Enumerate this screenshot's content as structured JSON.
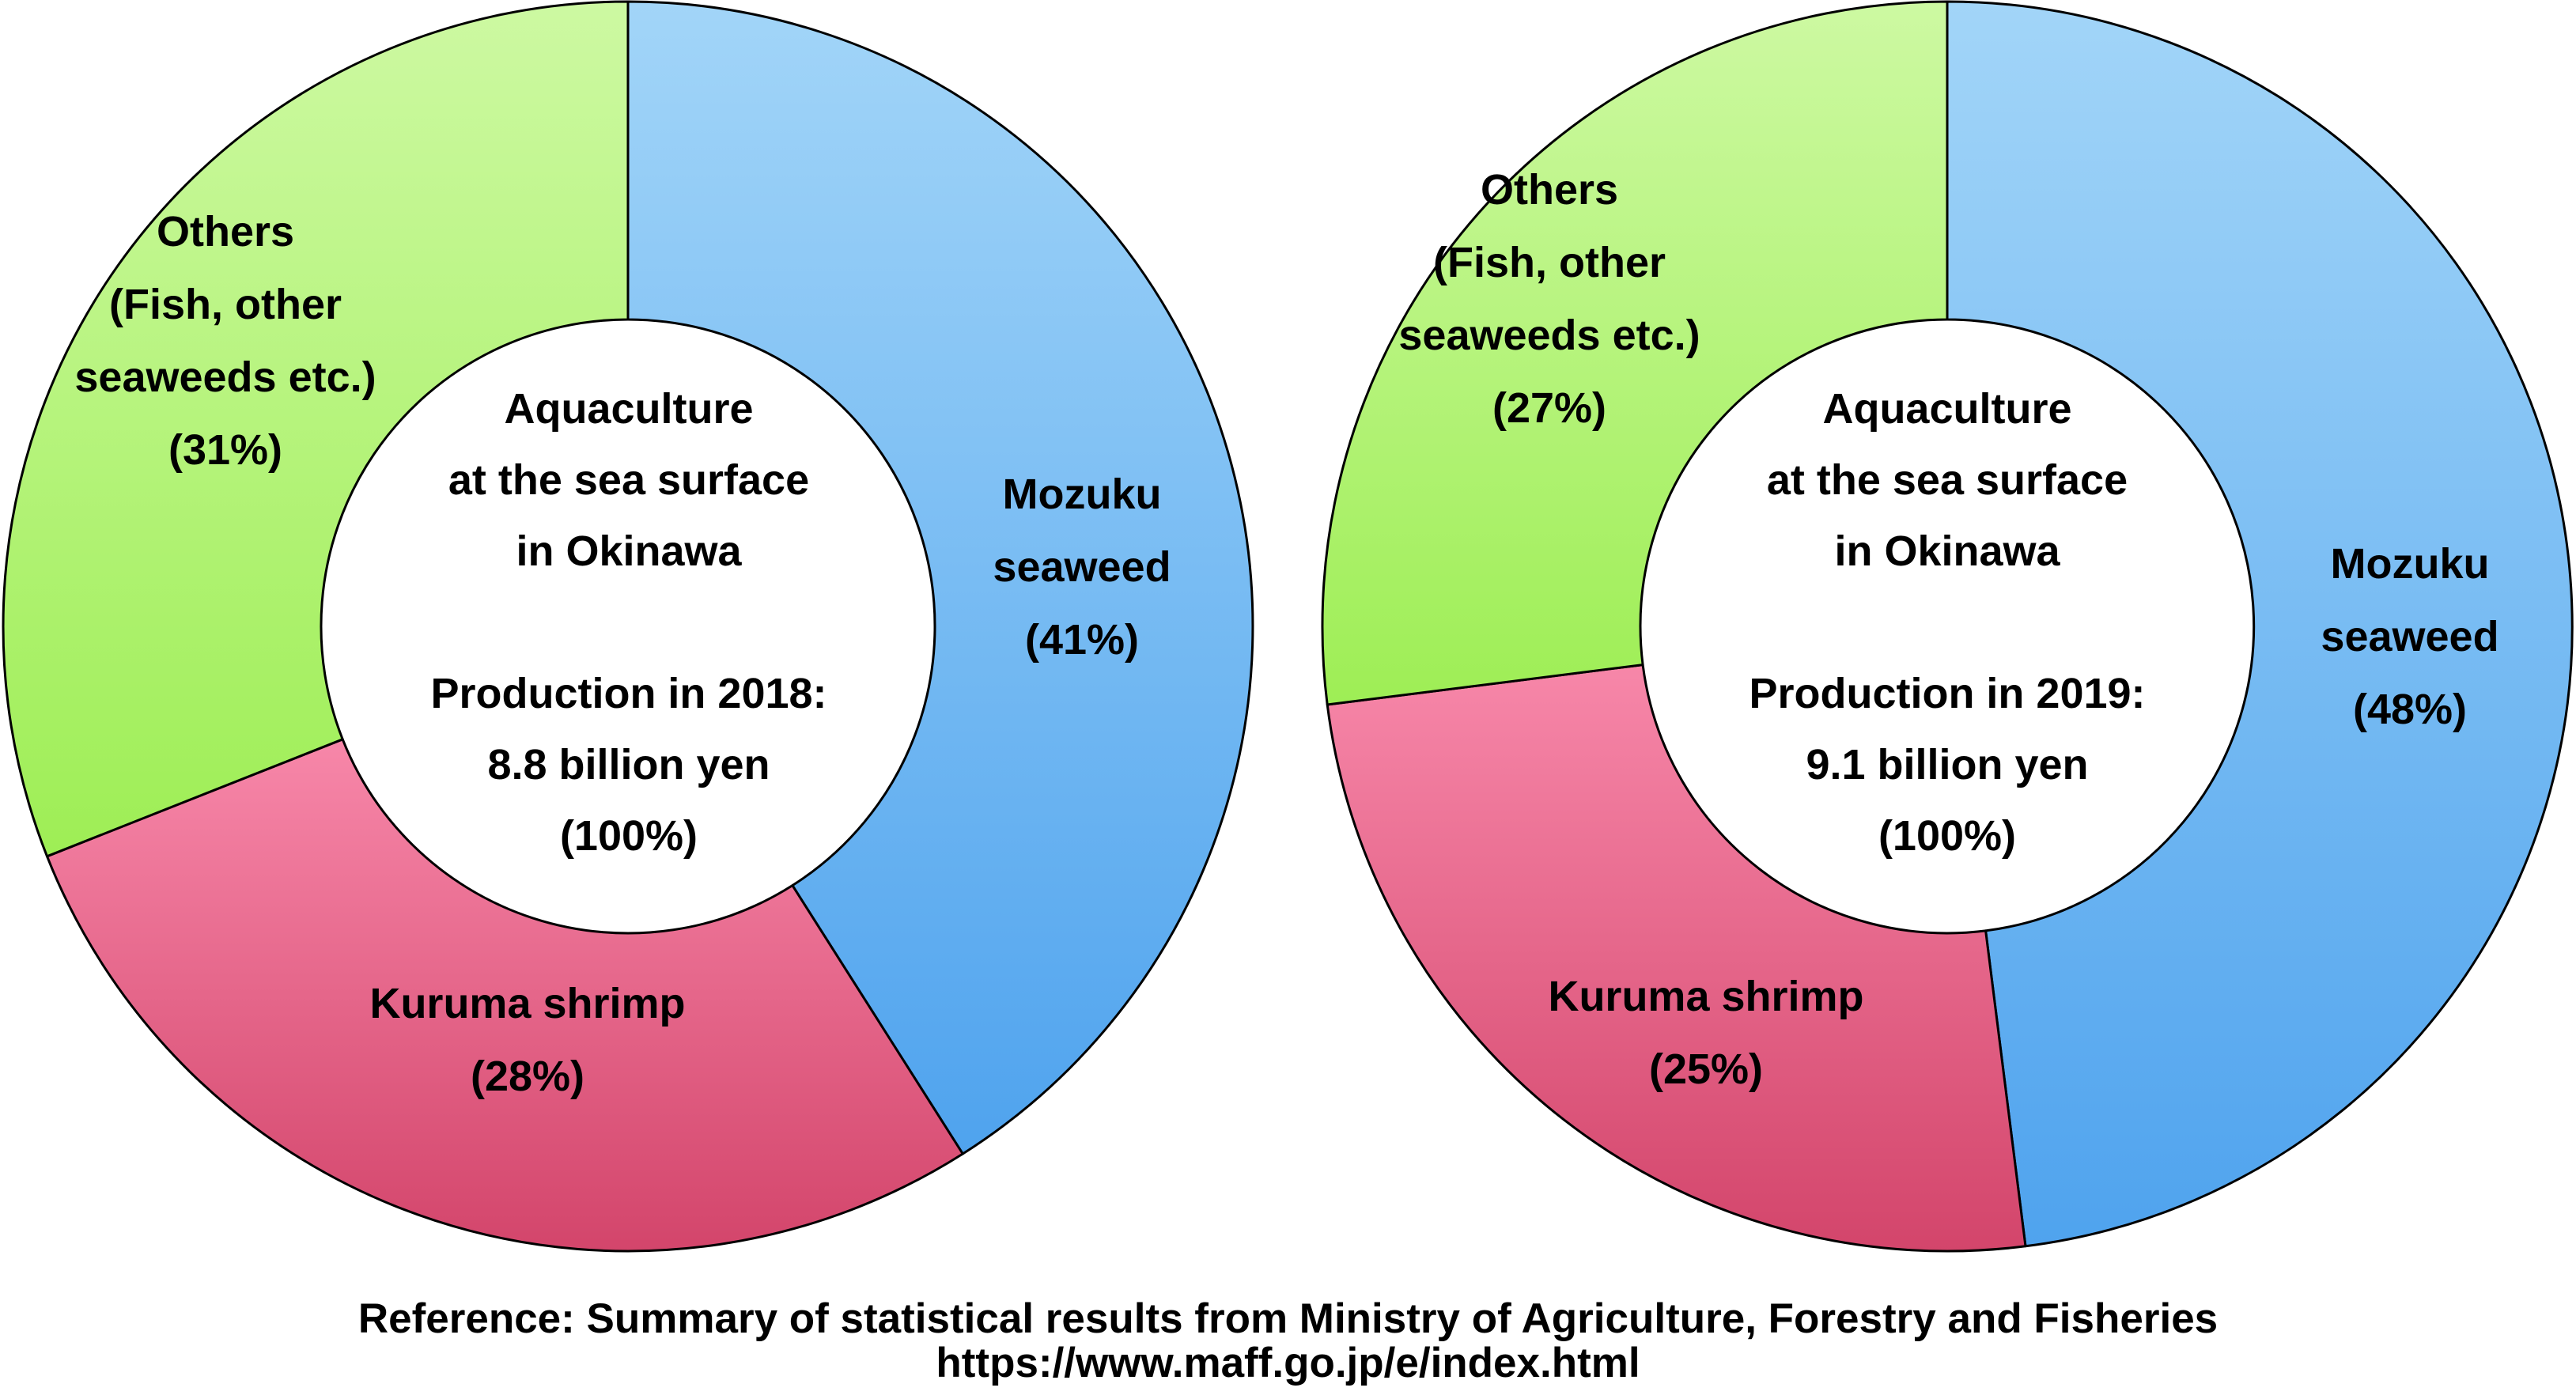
{
  "charts": [
    {
      "id": "production-2018",
      "center_lines": [
        "Aquaculture",
        "at the sea surface",
        "in Okinawa",
        "",
        "Production in 2018:",
        "8.8 billion yen",
        "(100%)"
      ],
      "labels": [
        {
          "name": "mozuku",
          "lines": [
            "Mozuku",
            "seaweed",
            "(41%)"
          ]
        },
        {
          "name": "kuruma",
          "lines": [
            "Kuruma shrimp",
            "(28%)"
          ]
        },
        {
          "name": "others",
          "lines": [
            "Others",
            "(Fish, other",
            "seaweeds etc.)",
            "(31%)"
          ]
        }
      ]
    },
    {
      "id": "production-2019",
      "center_lines": [
        "Aquaculture",
        "at the sea surface",
        "in Okinawa",
        "",
        "Production in 2019:",
        "9.1 billion yen",
        "(100%)"
      ],
      "labels": [
        {
          "name": "mozuku",
          "lines": [
            "Mozuku",
            "seaweed",
            "(48%)"
          ]
        },
        {
          "name": "kuruma",
          "lines": [
            "Kuruma shrimp",
            "(25%)"
          ]
        },
        {
          "name": "others",
          "lines": [
            "Others",
            "(Fish, other",
            "seaweeds etc.)",
            "(27%)"
          ]
        }
      ]
    }
  ],
  "chart_data": [
    {
      "type": "pie",
      "subtype": "donut",
      "year": 2018,
      "title": "Aquaculture at the sea surface in Okinawa — Production in 2018: 8.8 billion yen (100%)",
      "center_text": "Aquaculture at the sea surface in Okinawa / Production in 2018: 8.8 billion yen (100%)",
      "categories": [
        "Mozuku seaweed",
        "Kuruma shrimp",
        "Others (Fish, other seaweeds etc.)"
      ],
      "values": [
        41,
        28,
        31
      ],
      "unit": "%",
      "total": "8.8 billion yen",
      "start_angle_deg": 0,
      "direction": "clockwise",
      "inner_radius_ratio": 0.49,
      "slice_names": [
        "mozuku-seaweed",
        "kuruma-shrimp",
        "others"
      ],
      "colors": [
        "#6FB9F3",
        "#EE6290",
        "#AFF26B"
      ],
      "colors_gradient": [
        [
          "#A2D5F8",
          "#4FA3EE"
        ],
        [
          "#F787A9",
          "#D3456B"
        ],
        [
          "#CDF9A2",
          "#9EEE55"
        ]
      ]
    },
    {
      "type": "pie",
      "subtype": "donut",
      "year": 2019,
      "title": "Aquaculture at the sea surface in Okinawa — Production in 2019: 9.1 billion yen (100%)",
      "center_text": "Aquaculture at the sea surface in Okinawa / Production in 2019: 9.1 billion yen (100%)",
      "categories": [
        "Mozuku seaweed",
        "Kuruma shrimp",
        "Others (Fish, other seaweeds etc.)"
      ],
      "values": [
        48,
        25,
        27
      ],
      "unit": "%",
      "total": "9.1 billion yen",
      "start_angle_deg": 0,
      "direction": "clockwise",
      "inner_radius_ratio": 0.49,
      "slice_names": [
        "mozuku-seaweed",
        "kuruma-shrimp",
        "others"
      ],
      "colors": [
        "#6FB9F3",
        "#EE6290",
        "#AFF26B"
      ],
      "colors_gradient": [
        [
          "#A2D5F8",
          "#4FA3EE"
        ],
        [
          "#F787A9",
          "#D3456B"
        ],
        [
          "#CDF9A2",
          "#9EEE55"
        ]
      ]
    }
  ],
  "footer": {
    "line1": "Reference: Summary of statistical results from Ministry of Agriculture, Forestry and Fisheries",
    "line2": "https://www.maff.go.jp/e/index.html"
  }
}
